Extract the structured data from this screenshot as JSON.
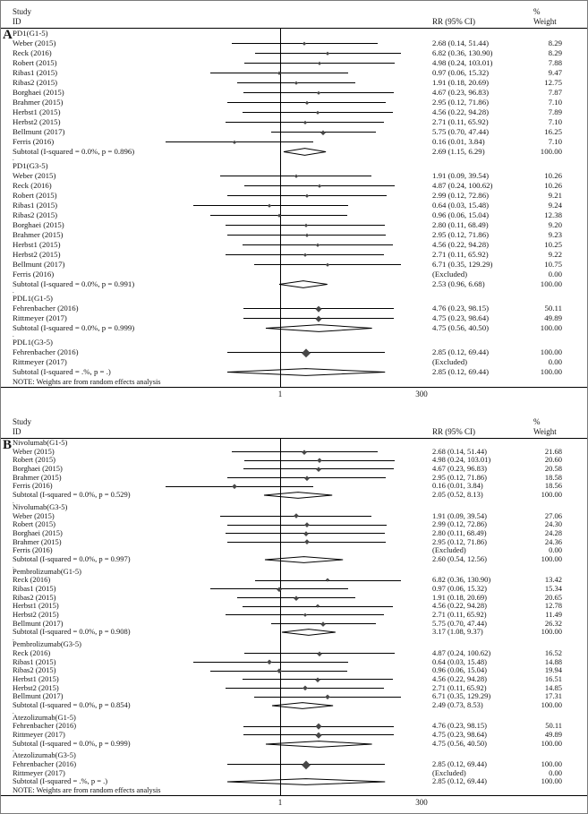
{
  "figure": {
    "header": {
      "study": "Study",
      "id": "ID",
      "rr": "RR (95% CI)",
      "pct": "%",
      "weight": "Weight"
    },
    "note": "NOTE: Weights are from random effects analysis",
    "colors": {
      "line": "#000000",
      "marker": "#474747",
      "reference_line": "#000000"
    }
  },
  "chart_data": [
    {
      "type": "forest",
      "panel": "A",
      "x_scale": "log",
      "ref_line": 1,
      "x_ticks": [
        "1",
        "300"
      ],
      "x_tick_values": [
        1,
        300
      ],
      "sections": [
        {
          "label": "PD1(G1-5)",
          "studies": [
            {
              "label": "Weber (2015)",
              "rr": 2.68,
              "lo": 0.14,
              "hi": 51.44,
              "ci_text": "2.68 (0.14, 51.44)",
              "weight": "8.29"
            },
            {
              "label": "Reck (2016)",
              "rr": 6.82,
              "lo": 0.36,
              "hi": 130.9,
              "ci_text": "6.82 (0.36, 130.90)",
              "weight": "8.29"
            },
            {
              "label": "Robert (2015)",
              "rr": 4.98,
              "lo": 0.24,
              "hi": 103.01,
              "ci_text": "4.98 (0.24, 103.01)",
              "weight": "7.88"
            },
            {
              "label": "Ribas1 (2015)",
              "rr": 0.97,
              "lo": 0.06,
              "hi": 15.32,
              "ci_text": "0.97 (0.06, 15.32)",
              "weight": "9.47"
            },
            {
              "label": "Ribas2 (2015)",
              "rr": 1.91,
              "lo": 0.18,
              "hi": 20.69,
              "ci_text": "1.91 (0.18, 20.69)",
              "weight": "12.75"
            },
            {
              "label": "Borghaei (2015)",
              "rr": 4.67,
              "lo": 0.23,
              "hi": 96.83,
              "ci_text": "4.67 (0.23, 96.83)",
              "weight": "7.87"
            },
            {
              "label": "Brahmer (2015)",
              "rr": 2.95,
              "lo": 0.12,
              "hi": 71.86,
              "ci_text": "2.95 (0.12, 71.86)",
              "weight": "7.10"
            },
            {
              "label": "Herbst1 (2015)",
              "rr": 4.56,
              "lo": 0.22,
              "hi": 94.28,
              "ci_text": "4.56 (0.22, 94.28)",
              "weight": "7.89"
            },
            {
              "label": "Herbst2 (2015)",
              "rr": 2.71,
              "lo": 0.11,
              "hi": 65.92,
              "ci_text": "2.71 (0.11, 65.92)",
              "weight": "7.10"
            },
            {
              "label": "Bellmunt (2017)",
              "rr": 5.75,
              "lo": 0.7,
              "hi": 47.44,
              "ci_text": "5.75 (0.70, 47.44)",
              "weight": "16.25"
            },
            {
              "label": "Ferris (2016)",
              "rr": 0.16,
              "lo": 0.01,
              "hi": 3.84,
              "ci_text": "0.16 (0.01, 3.84)",
              "weight": "7.10"
            }
          ],
          "subtotal": {
            "label": "Subtotal  (I-squared = 0.0%, p = 0.896)",
            "rr": 2.69,
            "lo": 1.15,
            "hi": 6.29,
            "ci_text": "2.69 (1.15, 6.29)",
            "weight": "100.00"
          }
        },
        {
          "label": "PD1(G3-5)",
          "studies": [
            {
              "label": "Weber (2015)",
              "rr": 1.91,
              "lo": 0.09,
              "hi": 39.54,
              "ci_text": "1.91 (0.09, 39.54)",
              "weight": "10.26"
            },
            {
              "label": "Reck (2016)",
              "rr": 4.87,
              "lo": 0.24,
              "hi": 100.62,
              "ci_text": "4.87 (0.24, 100.62)",
              "weight": "10.26"
            },
            {
              "label": "Robert (2015)",
              "rr": 2.99,
              "lo": 0.12,
              "hi": 72.86,
              "ci_text": "2.99 (0.12, 72.86)",
              "weight": "9.21"
            },
            {
              "label": "Ribas1 (2015)",
              "rr": 0.64,
              "lo": 0.03,
              "hi": 15.48,
              "ci_text": "0.64 (0.03, 15.48)",
              "weight": "9.24"
            },
            {
              "label": "Ribas2 (2015)",
              "rr": 0.96,
              "lo": 0.06,
              "hi": 15.04,
              "ci_text": "0.96 (0.06, 15.04)",
              "weight": "12.38"
            },
            {
              "label": "Borghaei (2015)",
              "rr": 2.8,
              "lo": 0.11,
              "hi": 68.49,
              "ci_text": "2.80 (0.11, 68.49)",
              "weight": "9.20"
            },
            {
              "label": "Brahmer (2015)",
              "rr": 2.95,
              "lo": 0.12,
              "hi": 71.86,
              "ci_text": "2.95 (0.12, 71.86)",
              "weight": "9.23"
            },
            {
              "label": "Herbst1 (2015)",
              "rr": 4.56,
              "lo": 0.22,
              "hi": 94.28,
              "ci_text": "4.56 (0.22, 94.28)",
              "weight": "10.25"
            },
            {
              "label": "Herbst2 (2015)",
              "rr": 2.71,
              "lo": 0.11,
              "hi": 65.92,
              "ci_text": "2.71 (0.11, 65.92)",
              "weight": "9.22"
            },
            {
              "label": "Bellmunt (2017)",
              "rr": 6.71,
              "lo": 0.35,
              "hi": 129.29,
              "ci_text": "6.71 (0.35, 129.29)",
              "weight": "10.75"
            },
            {
              "label": "Ferris (2016)",
              "excluded": true,
              "ci_text": "(Excluded)",
              "weight": "0.00"
            }
          ],
          "subtotal": {
            "label": "Subtotal  (I-squared = 0.0%, p = 0.991)",
            "rr": 2.53,
            "lo": 0.96,
            "hi": 6.68,
            "ci_text": "2.53 (0.96, 6.68)",
            "weight": "100.00"
          }
        },
        {
          "label": "PDL1(G1-5)",
          "studies": [
            {
              "label": "Fehrenbacher (2016)",
              "rr": 4.76,
              "lo": 0.23,
              "hi": 98.15,
              "ci_text": "4.76 (0.23, 98.15)",
              "weight": "50.11"
            },
            {
              "label": "Rittmeyer (2017)",
              "rr": 4.75,
              "lo": 0.23,
              "hi": 98.64,
              "ci_text": "4.75 (0.23, 98.64)",
              "weight": "49.89"
            }
          ],
          "subtotal": {
            "label": "Subtotal  (I-squared = 0.0%, p = 0.999)",
            "rr": 4.75,
            "lo": 0.56,
            "hi": 40.5,
            "ci_text": "4.75 (0.56, 40.50)",
            "weight": "100.00"
          }
        },
        {
          "label": "PDL1(G3-5)",
          "studies": [
            {
              "label": "Fehrenbacher (2016)",
              "rr": 2.85,
              "lo": 0.12,
              "hi": 69.44,
              "ci_text": "2.85 (0.12, 69.44)",
              "weight": "100.00"
            },
            {
              "label": "Rittmeyer (2017)",
              "excluded": true,
              "ci_text": "(Excluded)",
              "weight": "0.00"
            }
          ],
          "subtotal": {
            "label": "Subtotal  (I-squared = .%, p = .)",
            "rr": 2.85,
            "lo": 0.12,
            "hi": 69.44,
            "ci_text": "2.85 (0.12, 69.44)",
            "weight": "100.00"
          }
        }
      ]
    },
    {
      "type": "forest",
      "panel": "B",
      "x_scale": "log",
      "ref_line": 1,
      "x_ticks": [
        "1",
        "300"
      ],
      "x_tick_values": [
        1,
        300
      ],
      "sections": [
        {
          "label": "Nivolumab(G1-5)",
          "studies": [
            {
              "label": "Weber (2015)",
              "rr": 2.68,
              "lo": 0.14,
              "hi": 51.44,
              "ci_text": "2.68 (0.14, 51.44)",
              "weight": "21.68"
            },
            {
              "label": "Robert (2015)",
              "rr": 4.98,
              "lo": 0.24,
              "hi": 103.01,
              "ci_text": "4.98 (0.24, 103.01)",
              "weight": "20.60"
            },
            {
              "label": "Borghaei (2015)",
              "rr": 4.67,
              "lo": 0.23,
              "hi": 96.83,
              "ci_text": "4.67 (0.23, 96.83)",
              "weight": "20.58"
            },
            {
              "label": "Brahmer (2015)",
              "rr": 2.95,
              "lo": 0.12,
              "hi": 71.86,
              "ci_text": "2.95 (0.12, 71.86)",
              "weight": "18.58"
            },
            {
              "label": "Ferris (2016)",
              "rr": 0.16,
              "lo": 0.01,
              "hi": 3.84,
              "ci_text": "0.16 (0.01, 3.84)",
              "weight": "18.56"
            }
          ],
          "subtotal": {
            "label": "Subtotal  (I-squared = 0.0%, p = 0.529)",
            "rr": 2.05,
            "lo": 0.52,
            "hi": 8.13,
            "ci_text": "2.05 (0.52, 8.13)",
            "weight": "100.00"
          }
        },
        {
          "label": "Nivolumab(G3-5)",
          "studies": [
            {
              "label": "Weber (2015)",
              "rr": 1.91,
              "lo": 0.09,
              "hi": 39.54,
              "ci_text": "1.91 (0.09, 39.54)",
              "weight": "27.06"
            },
            {
              "label": "Robert (2015)",
              "rr": 2.99,
              "lo": 0.12,
              "hi": 72.86,
              "ci_text": "2.99 (0.12, 72.86)",
              "weight": "24.30"
            },
            {
              "label": "Borghaei (2015)",
              "rr": 2.8,
              "lo": 0.11,
              "hi": 68.49,
              "ci_text": "2.80 (0.11, 68.49)",
              "weight": "24.28"
            },
            {
              "label": "Brahmer (2015)",
              "rr": 2.95,
              "lo": 0.12,
              "hi": 71.86,
              "ci_text": "2.95 (0.12, 71.86)",
              "weight": "24.36"
            },
            {
              "label": "Ferris (2016)",
              "excluded": true,
              "ci_text": "(Excluded)",
              "weight": "0.00"
            }
          ],
          "subtotal": {
            "label": "Subtotal  (I-squared = 0.0%, p = 0.997)",
            "rr": 2.6,
            "lo": 0.54,
            "hi": 12.56,
            "ci_text": "2.60 (0.54, 12.56)",
            "weight": "100.00"
          }
        },
        {
          "label": "Pembrolizumab(G1-5)",
          "studies": [
            {
              "label": "Reck (2016)",
              "rr": 6.82,
              "lo": 0.36,
              "hi": 130.9,
              "ci_text": "6.82 (0.36, 130.90)",
              "weight": "13.42"
            },
            {
              "label": "Ribas1 (2015)",
              "rr": 0.97,
              "lo": 0.06,
              "hi": 15.32,
              "ci_text": "0.97 (0.06, 15.32)",
              "weight": "15.34"
            },
            {
              "label": "Ribas2 (2015)",
              "rr": 1.91,
              "lo": 0.18,
              "hi": 20.69,
              "ci_text": "1.91 (0.18, 20.69)",
              "weight": "20.65"
            },
            {
              "label": "Herbst1 (2015)",
              "rr": 4.56,
              "lo": 0.22,
              "hi": 94.28,
              "ci_text": "4.56 (0.22, 94.28)",
              "weight": "12.78"
            },
            {
              "label": "Herbst2 (2015)",
              "rr": 2.71,
              "lo": 0.11,
              "hi": 65.92,
              "ci_text": "2.71 (0.11, 65.92)",
              "weight": "11.49"
            },
            {
              "label": "Bellmunt (2017)",
              "rr": 5.75,
              "lo": 0.7,
              "hi": 47.44,
              "ci_text": "5.75 (0.70, 47.44)",
              "weight": "26.32"
            }
          ],
          "subtotal": {
            "label": "Subtotal  (I-squared = 0.0%, p = 0.908)",
            "rr": 3.17,
            "lo": 1.08,
            "hi": 9.37,
            "ci_text": "3.17 (1.08, 9.37)",
            "weight": "100.00"
          }
        },
        {
          "label": "Pembrolizumab(G3-5)",
          "studies": [
            {
              "label": "Reck (2016)",
              "rr": 4.87,
              "lo": 0.24,
              "hi": 100.62,
              "ci_text": "4.87 (0.24, 100.62)",
              "weight": "16.52"
            },
            {
              "label": "Ribas1 (2015)",
              "rr": 0.64,
              "lo": 0.03,
              "hi": 15.48,
              "ci_text": "0.64 (0.03, 15.48)",
              "weight": "14.88"
            },
            {
              "label": "Ribas2 (2015)",
              "rr": 0.96,
              "lo": 0.06,
              "hi": 15.04,
              "ci_text": "0.96 (0.06, 15.04)",
              "weight": "19.94"
            },
            {
              "label": "Herbst1 (2015)",
              "rr": 4.56,
              "lo": 0.22,
              "hi": 94.28,
              "ci_text": "4.56 (0.22, 94.28)",
              "weight": "16.51"
            },
            {
              "label": "Herbst2 (2015)",
              "rr": 2.71,
              "lo": 0.11,
              "hi": 65.92,
              "ci_text": "2.71 (0.11, 65.92)",
              "weight": "14.85"
            },
            {
              "label": "Bellmunt (2017)",
              "rr": 6.71,
              "lo": 0.35,
              "hi": 129.29,
              "ci_text": "6.71 (0.35, 129.29)",
              "weight": "17.31"
            }
          ],
          "subtotal": {
            "label": "Subtotal  (I-squared = 0.0%, p = 0.854)",
            "rr": 2.49,
            "lo": 0.73,
            "hi": 8.53,
            "ci_text": "2.49 (0.73, 8.53)",
            "weight": "100.00"
          }
        },
        {
          "label": "Atezolizumab(G1-5)",
          "studies": [
            {
              "label": "Fehrenbacher (2016)",
              "rr": 4.76,
              "lo": 0.23,
              "hi": 98.15,
              "ci_text": "4.76 (0.23, 98.15)",
              "weight": "50.11"
            },
            {
              "label": "Rittmeyer (2017)",
              "rr": 4.75,
              "lo": 0.23,
              "hi": 98.64,
              "ci_text": "4.75 (0.23, 98.64)",
              "weight": "49.89"
            }
          ],
          "subtotal": {
            "label": "Subtotal  (I-squared = 0.0%, p = 0.999)",
            "rr": 4.75,
            "lo": 0.56,
            "hi": 40.5,
            "ci_text": "4.75 (0.56, 40.50)",
            "weight": "100.00"
          }
        },
        {
          "label": "Atezolizumab(G3-5)",
          "studies": [
            {
              "label": "Fehrenbacher (2016)",
              "rr": 2.85,
              "lo": 0.12,
              "hi": 69.44,
              "ci_text": "2.85 (0.12, 69.44)",
              "weight": "100.00"
            },
            {
              "label": "Rittmeyer (2017)",
              "excluded": true,
              "ci_text": "(Excluded)",
              "weight": "0.00"
            }
          ],
          "subtotal": {
            "label": "Subtotal  (I-squared = .%, p = .)",
            "rr": 2.85,
            "lo": 0.12,
            "hi": 69.44,
            "ci_text": "2.85 (0.12, 69.44)",
            "weight": "100.00"
          }
        }
      ]
    }
  ]
}
